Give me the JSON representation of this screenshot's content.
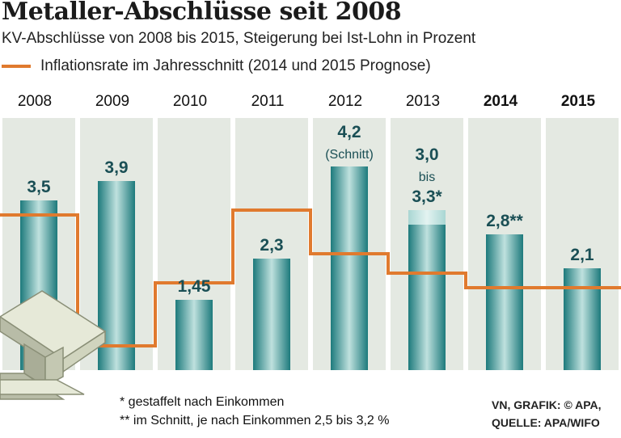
{
  "title": "Metaller-Abschlüsse seit 2008",
  "subtitle": "KV-Abschlüsse von 2008 bis 2015, Steigerung bei Ist-Lohn in Prozent",
  "legend": "Inflationsrate im Jahresschnitt (2014 und 2015 Prognose)",
  "colors": {
    "bar_dark": "#1d7a7c",
    "bar_light": "#c9e5e3",
    "inflation_line": "#e07a2e",
    "panel": "#e4e9e2",
    "label": "#1a4f55"
  },
  "chart_data": {
    "type": "bar",
    "title": "Metaller-Abschlüsse seit 2008",
    "ylabel": "Steigerung bei Ist-Lohn in Prozent",
    "categories": [
      "2008",
      "2009",
      "2010",
      "2011",
      "2012",
      "2013",
      "2014",
      "2015"
    ],
    "bold_categories": [
      "2014",
      "2015"
    ],
    "series": [
      {
        "name": "KV-Abschluss (Ist-Lohn)",
        "values": [
          3.5,
          3.9,
          1.45,
          2.3,
          4.2,
          3.0,
          2.8,
          2.1
        ],
        "range_high": [
          null,
          null,
          null,
          null,
          null,
          3.3,
          null,
          null
        ]
      },
      {
        "name": "Inflationsrate im Jahresschnitt",
        "values": [
          3.2,
          0.5,
          1.8,
          3.3,
          2.4,
          2.0,
          1.7,
          1.7
        ]
      }
    ],
    "data_labels": [
      [
        "3,5"
      ],
      [
        "3,9"
      ],
      [
        "1,45"
      ],
      [
        "2,3"
      ],
      [
        "4,2",
        "(Schnitt)"
      ],
      [
        "3,0",
        "bis",
        "3,3*"
      ],
      [
        "2,8**"
      ],
      [
        "2,1"
      ]
    ],
    "ylim": [
      0,
      5
    ],
    "grid": false,
    "footnotes": [
      "*  gestaffelt nach Einkommen",
      "** im Schnitt, je nach Einkommen 2,5 bis 3,2 %"
    ],
    "source": [
      "VN, GRAFIK: © APA,",
      "QUELLE: APA/WIFO"
    ]
  }
}
